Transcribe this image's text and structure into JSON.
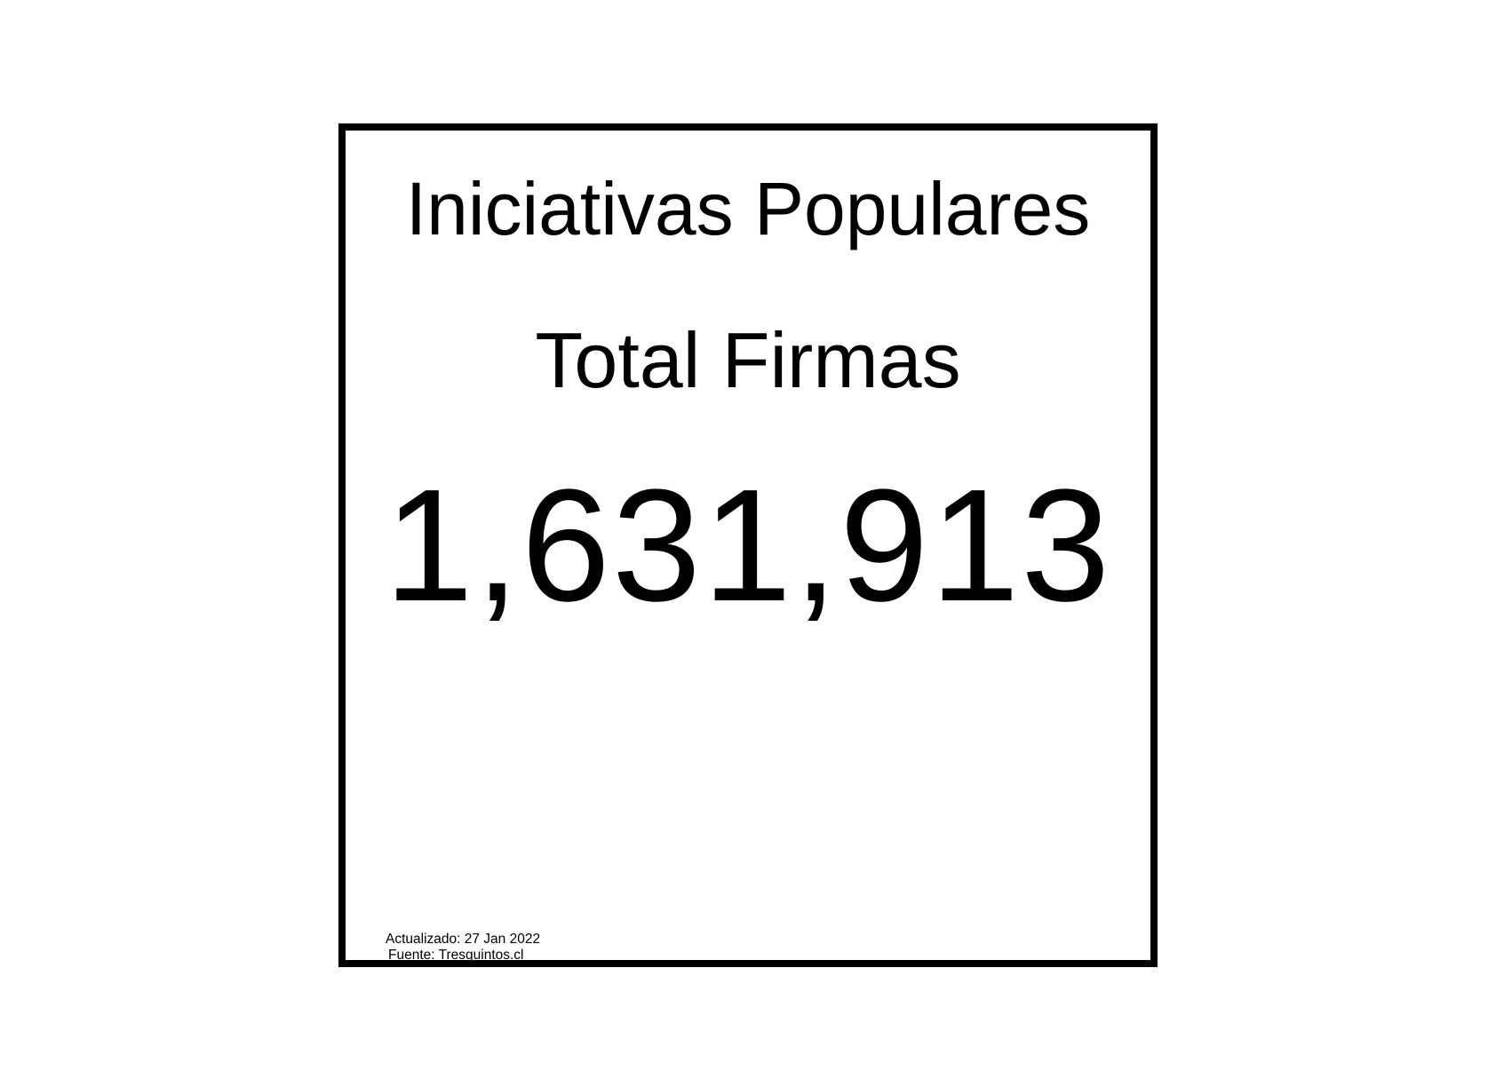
{
  "card": {
    "title": "Iniciativas Populares",
    "subtitle": "Total Firmas",
    "value": "1,631,913",
    "updated": "Actualizado: 27 Jan 2022",
    "source": "Fuente: Tresquintos.cl"
  },
  "colors": {
    "background": "#ffffff",
    "border": "#000000",
    "text": "#000000"
  }
}
